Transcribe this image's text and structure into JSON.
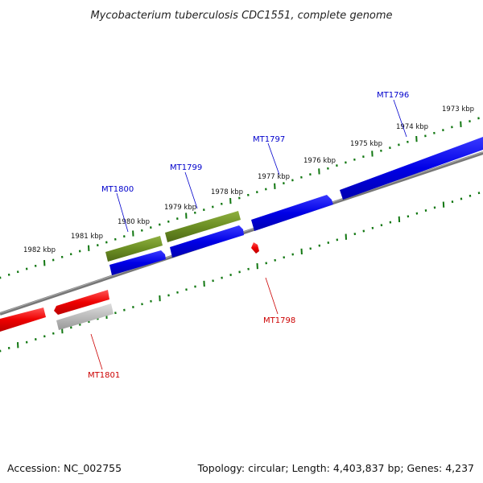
{
  "title": "Mycobacterium tuberculosis CDC1551, complete genome",
  "footer": {
    "accession": "Accession: NC_002755",
    "summary": "Topology: circular; Length: 4,403,837 bp; Genes: 4,237"
  },
  "scale_labels": [
    "1973 kbp",
    "1974 kbp",
    "1975 kbp",
    "1976 kbp",
    "1977 kbp",
    "1978 kbp",
    "1979 kbp",
    "1980 kbp",
    "1981 kbp",
    "1982 kbp"
  ],
  "genes": [
    {
      "label": "MT1796",
      "strand": "forward",
      "color": "#0000cc"
    },
    {
      "label": "MT1797",
      "strand": "forward",
      "color": "#0000cc"
    },
    {
      "label": "MT1799",
      "strand": "forward",
      "color": "#0000cc"
    },
    {
      "label": "MT1800",
      "strand": "forward",
      "color": "#0000cc"
    },
    {
      "label": "MT1798",
      "strand": "reverse",
      "color": "#cc0000"
    },
    {
      "label": "MT1801",
      "strand": "reverse",
      "color": "#cc0000"
    }
  ],
  "colors": {
    "forward_gene": "#0000ee",
    "reverse_gene": "#ee0000",
    "pseudo_gene": "#bbbbbb",
    "feature": "#6b8e23",
    "backbone": "#777777",
    "ticks": "#117711"
  }
}
